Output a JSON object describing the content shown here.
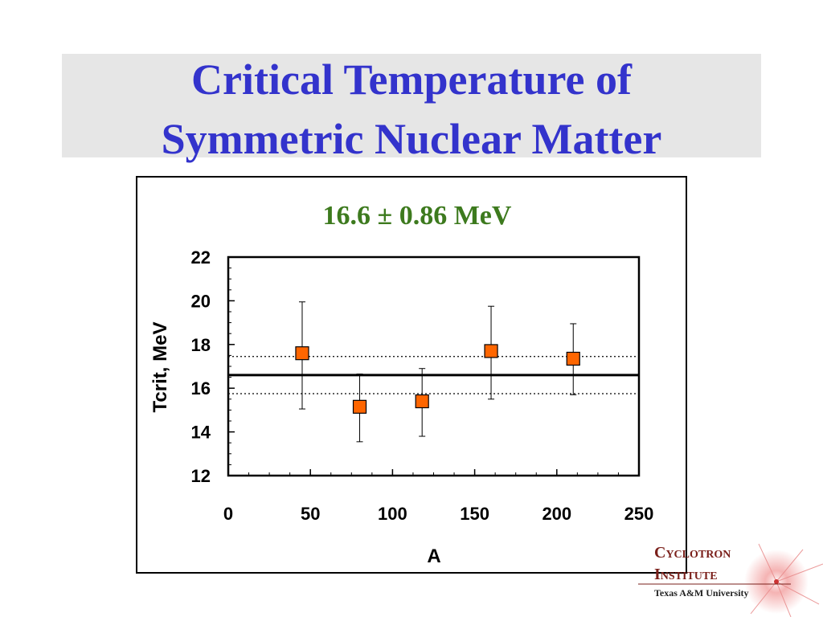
{
  "slide": {
    "title_line_1": "Critical Temperature of",
    "title_line_2": "Symmetric Nuclear Matter",
    "title_color": "#3333cc"
  },
  "logo": {
    "line1": "Cyclotron",
    "line2": "Institute",
    "line3": "Texas A&M University",
    "colors": {
      "text": "#7a1f1a",
      "accent": "#d9534f",
      "glow": "#f2a0a0"
    }
  },
  "chart_data": {
    "type": "scatter",
    "annotation": "16.6 ± 0.86 MeV",
    "annotation_color": "#3d7a1e",
    "xlabel": "A",
    "ylabel": "Tcrit, MeV",
    "xlim": [
      0,
      250
    ],
    "ylim": [
      12,
      22
    ],
    "xticks": [
      0,
      50,
      100,
      150,
      200,
      250
    ],
    "yticks": [
      12,
      14,
      16,
      18,
      20,
      22
    ],
    "grid": false,
    "marker_color": "#ff6600",
    "series": [
      {
        "points": [
          {
            "x": 45,
            "y": 17.6,
            "err_low": 2.55,
            "err_high": 2.35
          },
          {
            "x": 80,
            "y": 15.15,
            "err_low": 1.6,
            "err_high": 1.5
          },
          {
            "x": 118,
            "y": 15.4,
            "err_low": 1.6,
            "err_high": 1.5
          },
          {
            "x": 160,
            "y": 17.7,
            "err_low": 2.2,
            "err_high": 2.05
          },
          {
            "x": 210,
            "y": 17.35,
            "err_low": 1.65,
            "err_high": 1.6
          }
        ]
      }
    ],
    "reference_lines": [
      {
        "y": 16.6,
        "style": "solid"
      },
      {
        "y": 17.45,
        "style": "dotted"
      },
      {
        "y": 15.75,
        "style": "dotted"
      }
    ]
  }
}
